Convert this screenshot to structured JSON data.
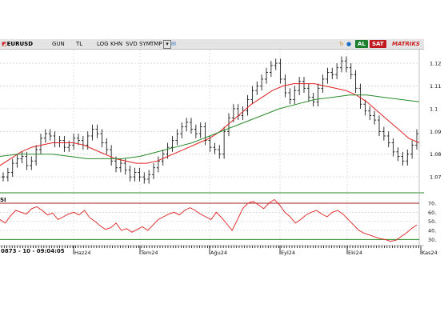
{
  "toolbar": {
    "symbol": "EURUSD",
    "items": [
      "GUN",
      "TL",
      "LOG",
      "KHN",
      "SVD",
      "SYM",
      "TMP"
    ],
    "dropdown_icon": "chevron-down-icon",
    "refresh_icon": "refresh-icon",
    "info_icon": "info-icon",
    "buy_label": "AL",
    "sell_label": "SAT",
    "matriks_label": "MATRIKS",
    "colors": {
      "buy": "#1a7f2a",
      "sell": "#c0181f",
      "matriks": "#cc1f1f"
    }
  },
  "price_axis": [
    "1.12",
    "1.11",
    "1.1",
    "1.09",
    "1.08",
    "1.07"
  ],
  "rsi_label": "SI",
  "rsi_axis": [
    "70.",
    "60.",
    "50.",
    "40.",
    "30."
  ],
  "footer": {
    "readout": "0873 - 10 - 09:04:05",
    "months": [
      "Haz24",
      "Tem24",
      "Ağu24",
      "Eyl24",
      "Eki24",
      "Kas24"
    ]
  },
  "chart_data": [
    {
      "type": "line",
      "title": "",
      "series": [
        {
          "kind": "ohlc",
          "color": "#000000",
          "values": [
            1.07,
            1.072,
            1.076,
            1.078,
            1.079,
            1.075,
            1.077,
            1.082,
            1.087,
            1.089,
            1.088,
            1.085,
            1.086,
            1.083,
            1.084,
            1.087,
            1.086,
            1.084,
            1.088,
            1.091,
            1.089,
            1.085,
            1.082,
            1.077,
            1.074,
            1.076,
            1.073,
            1.07,
            1.072,
            1.07,
            1.069,
            1.071,
            1.074,
            1.077,
            1.08,
            1.083,
            1.086,
            1.089,
            1.092,
            1.094,
            1.091,
            1.089,
            1.092,
            1.086,
            1.083,
            1.082,
            1.08,
            1.09,
            1.096,
            1.1,
            1.097,
            1.099,
            1.104,
            1.108,
            1.11,
            1.113,
            1.116,
            1.119,
            1.12,
            1.113,
            1.107,
            1.104,
            1.108,
            1.112,
            1.109,
            1.105,
            1.103,
            1.109,
            1.113,
            1.116,
            1.115,
            1.118,
            1.121,
            1.118,
            1.115,
            1.109,
            1.102,
            1.099,
            1.097,
            1.095,
            1.09,
            1.088,
            1.085,
            1.081,
            1.079,
            1.077,
            1.08,
            1.084,
            1.089
          ]
        },
        {
          "kind": "moving-average",
          "color": "#e02020",
          "values": [
            1.075,
            1.078,
            1.081,
            1.083,
            1.084,
            1.085,
            1.085,
            1.085,
            1.084,
            1.082,
            1.08,
            1.078,
            1.077,
            1.076,
            1.076,
            1.077,
            1.079,
            1.081,
            1.083,
            1.085,
            1.087,
            1.09,
            1.094,
            1.098,
            1.102,
            1.105,
            1.108,
            1.11,
            1.111,
            1.111,
            1.111,
            1.11,
            1.109,
            1.108,
            1.106,
            1.103,
            1.099,
            1.095,
            1.091,
            1.087,
            1.085
          ]
        },
        {
          "kind": "moving-average",
          "color": "#2a8a2a",
          "values": [
            1.079,
            1.08,
            1.08,
            1.08,
            1.079,
            1.078,
            1.078,
            1.078,
            1.079,
            1.081,
            1.083,
            1.085,
            1.088,
            1.091,
            1.094,
            1.097,
            1.1,
            1.102,
            1.104,
            1.105,
            1.106,
            1.106,
            1.105,
            1.104,
            1.103
          ]
        }
      ],
      "ylim": [
        1.063,
        1.126
      ],
      "grid": true
    },
    {
      "type": "line",
      "title": "",
      "series": [
        {
          "color": "#e02020",
          "values": [
            52,
            48,
            56,
            62,
            60,
            58,
            64,
            66,
            62,
            57,
            59,
            52,
            55,
            58,
            60,
            57,
            62,
            54,
            50,
            45,
            41,
            43,
            48,
            40,
            42,
            38,
            41,
            44,
            40,
            46,
            52,
            55,
            58,
            60,
            57,
            62,
            65,
            62,
            58,
            55,
            52,
            60,
            54,
            47,
            40,
            52,
            64,
            70,
            72,
            68,
            64,
            70,
            74,
            68,
            60,
            55,
            48,
            52,
            57,
            60,
            62,
            58,
            55,
            60,
            62,
            58,
            52,
            46,
            40,
            37,
            35,
            33,
            31,
            30,
            28,
            29,
            33,
            37,
            42,
            46
          ]
        }
      ],
      "ylim": [
        25,
        77
      ],
      "reference_lines": [
        70,
        30
      ],
      "grid": true
    }
  ]
}
